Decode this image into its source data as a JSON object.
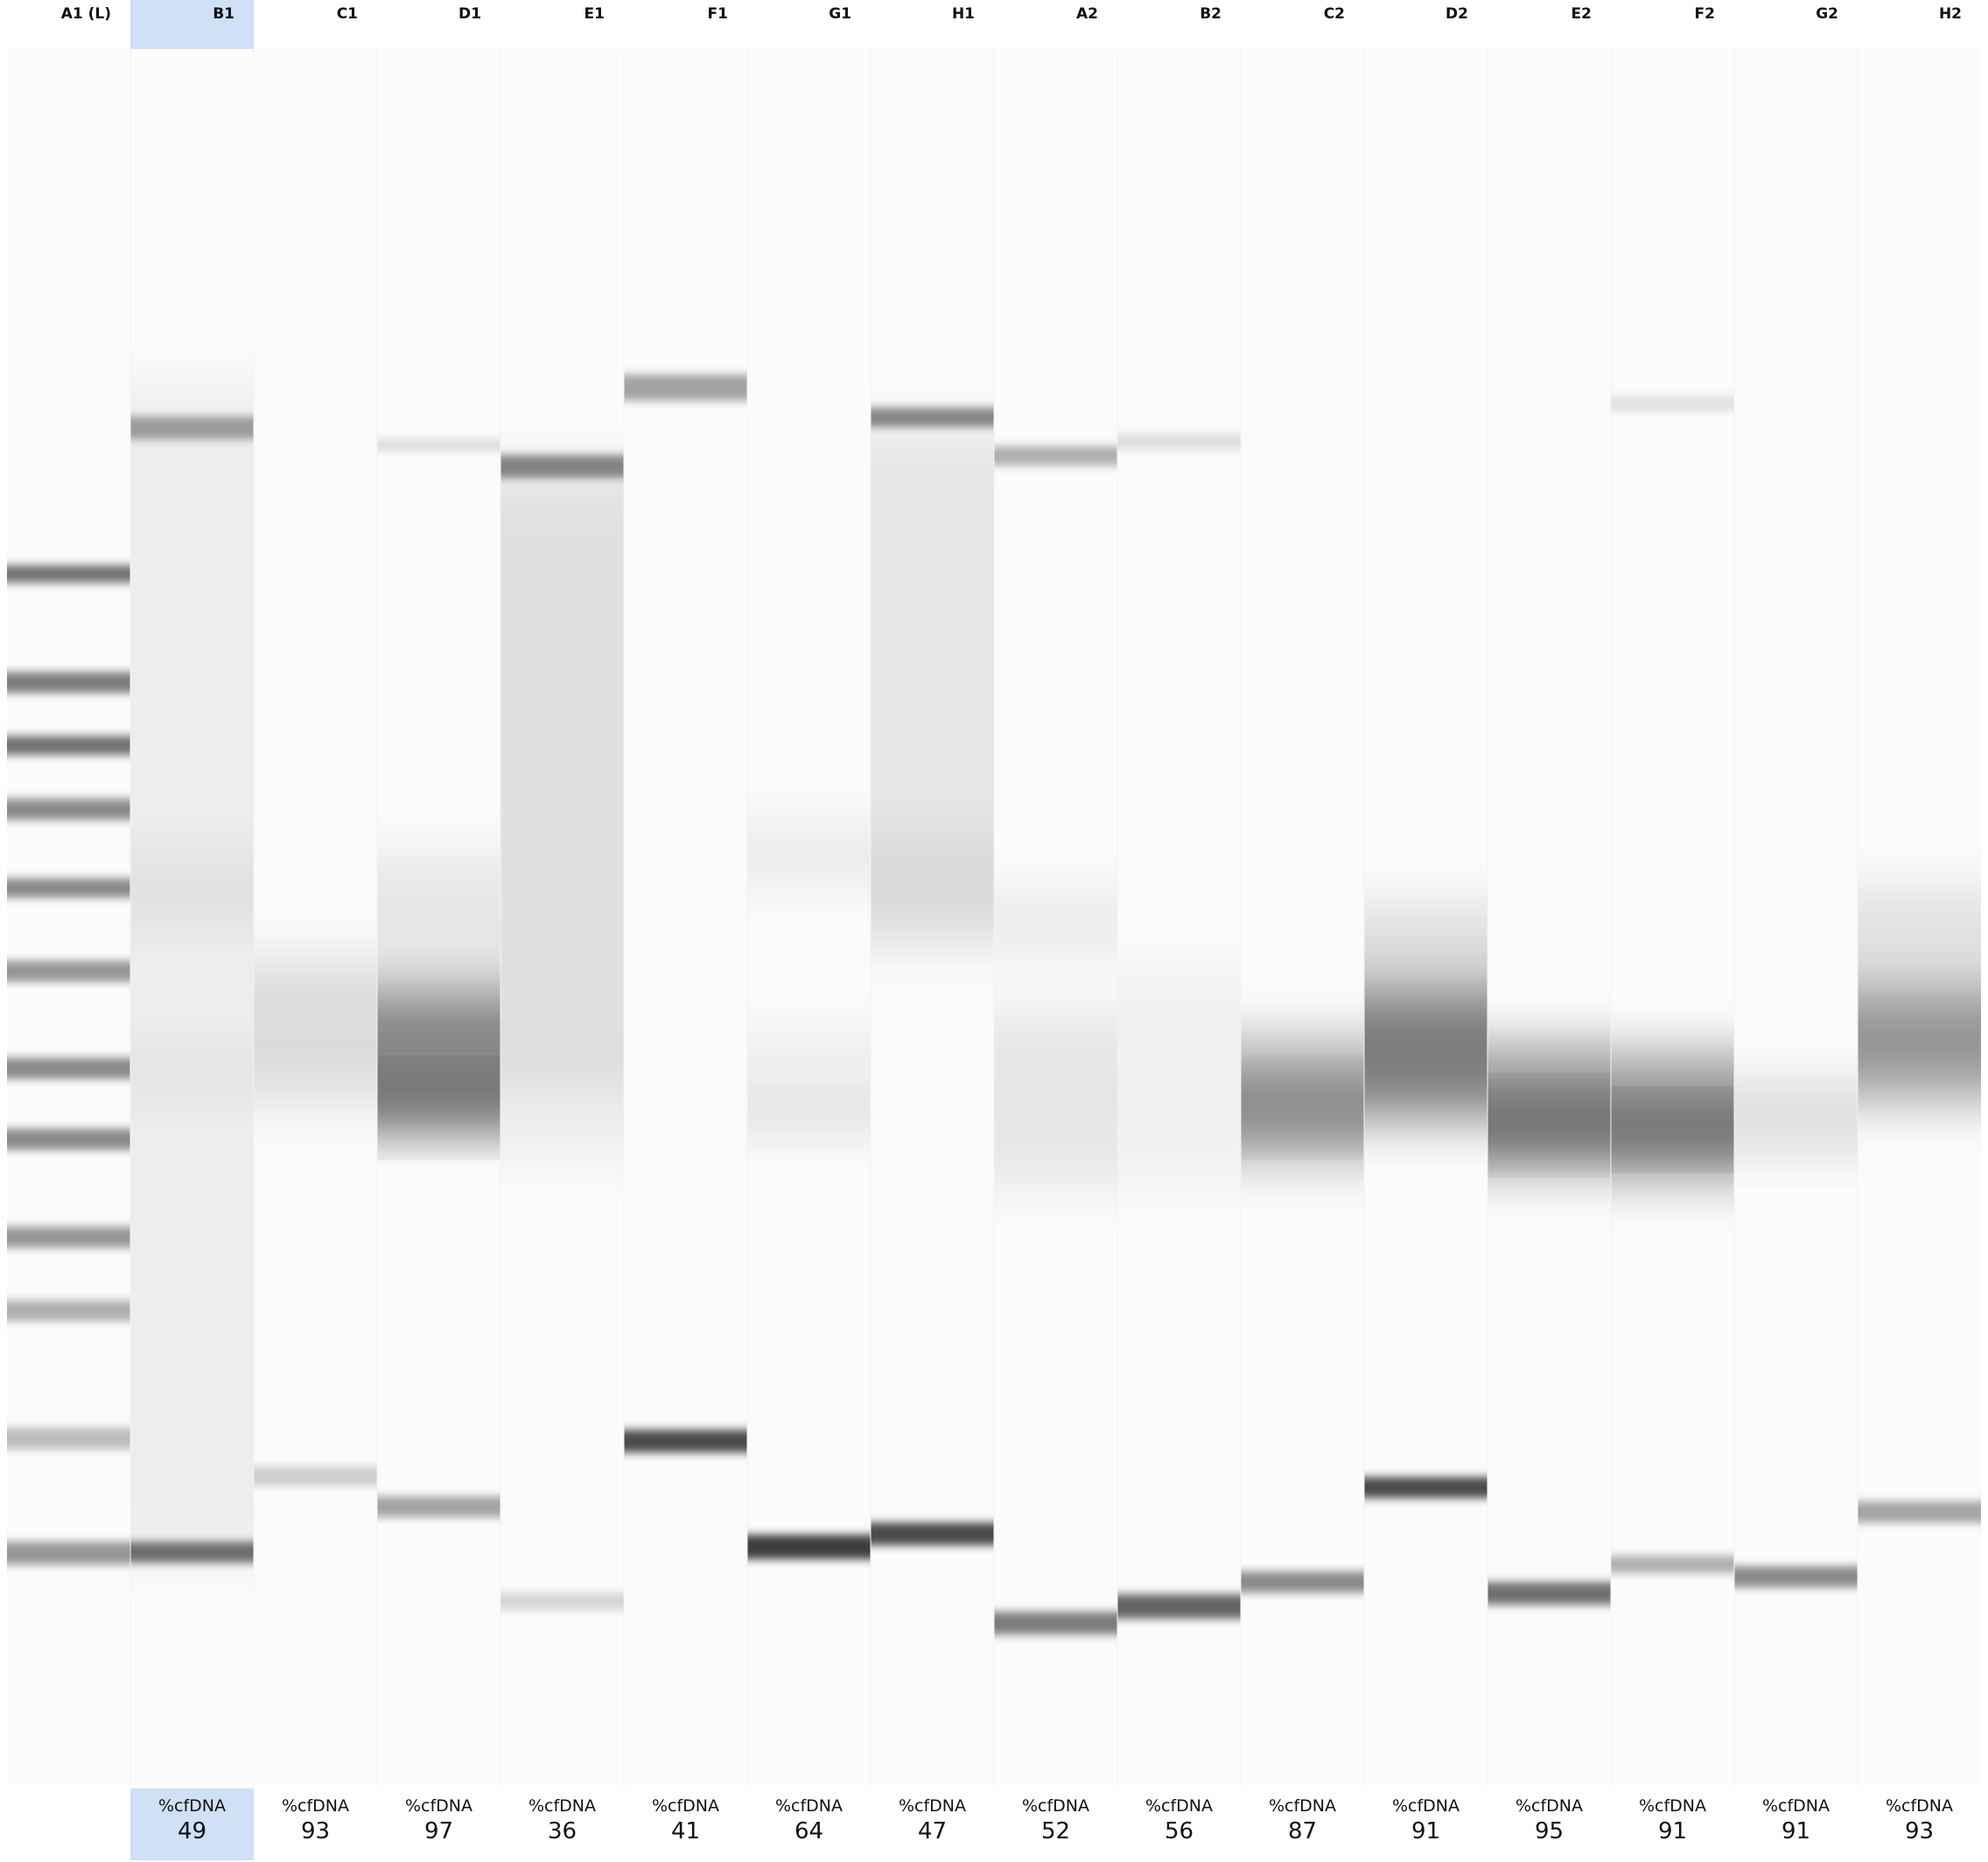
{
  "lanes": [
    {
      "id": "A1 (L)",
      "ladder": true
    },
    {
      "id": "B1",
      "selected": true,
      "label": "%cfDNA",
      "value": "49"
    },
    {
      "id": "C1",
      "label": "%cfDNA",
      "value": "93"
    },
    {
      "id": "D1",
      "label": "%cfDNA",
      "value": "97"
    },
    {
      "id": "E1",
      "label": "%cfDNA",
      "value": "36"
    },
    {
      "id": "F1",
      "label": "%cfDNA",
      "value": "41"
    },
    {
      "id": "G1",
      "label": "%cfDNA",
      "value": "64"
    },
    {
      "id": "H1",
      "label": "%cfDNA",
      "value": "47"
    },
    {
      "id": "A2",
      "label": "%cfDNA",
      "value": "52"
    },
    {
      "id": "B2",
      "label": "%cfDNA",
      "value": "56"
    },
    {
      "id": "C2",
      "label": "%cfDNA",
      "value": "87"
    },
    {
      "id": "D2",
      "label": "%cfDNA",
      "value": "91"
    },
    {
      "id": "E2",
      "label": "%cfDNA",
      "value": "95"
    },
    {
      "id": "F2",
      "label": "%cfDNA",
      "value": "91"
    },
    {
      "id": "G2",
      "label": "%cfDNA",
      "value": "91"
    },
    {
      "id": "H2",
      "label": "%cfDNA",
      "value": "93"
    }
  ],
  "colors": {
    "selected_bg": "#cfe0f7",
    "band": "#000000",
    "background": "#ffffff"
  }
}
